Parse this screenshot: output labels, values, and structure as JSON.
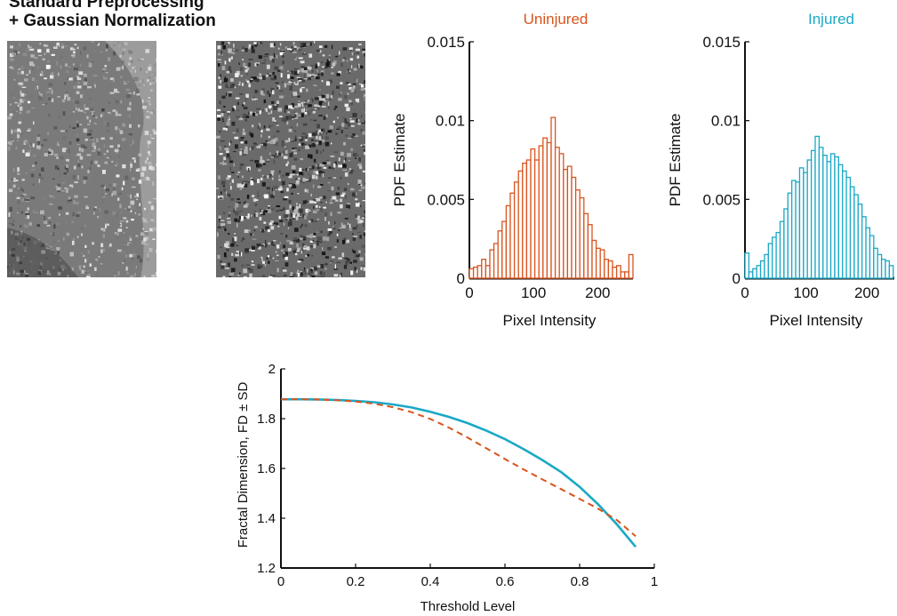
{
  "header": {
    "line1": "Standard Preprocessing",
    "line2": "+ Gaussian Normalization"
  },
  "images": [
    {
      "name": "uninjured-micrograph"
    },
    {
      "name": "injured-micrograph"
    }
  ],
  "colors": {
    "uninjured": "#d9541e",
    "injured": "#1aa8c6",
    "axis": "#111111"
  },
  "chart_data": [
    {
      "type": "bar",
      "title": "Uninjured",
      "xlabel": "Pixel Intensity",
      "ylabel": "PDF Estimate",
      "xlim": [
        0,
        255
      ],
      "ylim": [
        0,
        0.015
      ],
      "xticks": [
        "0",
        "100",
        "200"
      ],
      "yticks": [
        "0",
        "0.005",
        "0.01",
        "0.015"
      ],
      "bin_width": 6.375,
      "values": [
        0.0006,
        0.0007,
        0.0008,
        0.0012,
        0.0008,
        0.0018,
        0.0022,
        0.003,
        0.0036,
        0.0046,
        0.0054,
        0.0061,
        0.0068,
        0.0073,
        0.0075,
        0.0082,
        0.0075,
        0.0084,
        0.0089,
        0.0086,
        0.0102,
        0.0083,
        0.0079,
        0.0069,
        0.0071,
        0.0064,
        0.0056,
        0.0051,
        0.0041,
        0.0034,
        0.0024,
        0.0019,
        0.0018,
        0.0012,
        0.0011,
        0.0007,
        0.0008,
        0.0004,
        0.0004,
        0.0015
      ]
    },
    {
      "type": "bar",
      "title": "Injured",
      "xlabel": "Pixel Intensity",
      "ylabel": "PDF Estimate",
      "xlim": [
        0,
        245
      ],
      "ylim": [
        0,
        0.015
      ],
      "xticks": [
        "0",
        "100",
        "200"
      ],
      "yticks": [
        "0",
        "0.005",
        "0.01",
        "0.015"
      ],
      "bin_width": 6.4,
      "values": [
        0.0016,
        0.0004,
        0.0006,
        0.0008,
        0.0011,
        0.0015,
        0.0022,
        0.0026,
        0.0029,
        0.0036,
        0.0044,
        0.0054,
        0.0062,
        0.0061,
        0.007,
        0.0067,
        0.0075,
        0.0081,
        0.009,
        0.0083,
        0.0078,
        0.0074,
        0.0079,
        0.0077,
        0.0072,
        0.0068,
        0.0064,
        0.0058,
        0.0053,
        0.0047,
        0.0039,
        0.0032,
        0.0027,
        0.0019,
        0.0015,
        0.0012,
        0.0011,
        0.0008
      ]
    },
    {
      "type": "line",
      "xlabel": "Threshold Level",
      "ylabel": "Fractal Dimension, FD ± SD",
      "xlim": [
        0,
        1
      ],
      "ylim": [
        1.2,
        2
      ],
      "xticks": [
        "0",
        "0.2",
        "0.4",
        "0.6",
        "0.8",
        "1"
      ],
      "yticks": [
        "1.2",
        "1.4",
        "1.6",
        "1.8",
        "2"
      ],
      "series": [
        {
          "color": "#1aa8c6",
          "style": "solid",
          "x": [
            0,
            0.05,
            0.1,
            0.15,
            0.2,
            0.25,
            0.3,
            0.35,
            0.4,
            0.45,
            0.5,
            0.55,
            0.6,
            0.65,
            0.7,
            0.75,
            0.8,
            0.85,
            0.9,
            0.95
          ],
          "y": [
            1.878,
            1.878,
            1.877,
            1.875,
            1.871,
            1.866,
            1.857,
            1.845,
            1.828,
            1.807,
            1.782,
            1.752,
            1.718,
            1.678,
            1.634,
            1.586,
            1.526,
            1.455,
            1.375,
            1.285
          ]
        },
        {
          "color": "#d9541e",
          "style": "dashed",
          "x": [
            0,
            0.05,
            0.1,
            0.15,
            0.2,
            0.25,
            0.3,
            0.35,
            0.4,
            0.45,
            0.5,
            0.55,
            0.6,
            0.65,
            0.7,
            0.75,
            0.8,
            0.85,
            0.9,
            0.95
          ],
          "y": [
            1.878,
            1.878,
            1.877,
            1.874,
            1.869,
            1.86,
            1.846,
            1.826,
            1.799,
            1.764,
            1.724,
            1.681,
            1.638,
            1.596,
            1.556,
            1.517,
            1.478,
            1.438,
            1.392,
            1.328
          ]
        }
      ]
    }
  ]
}
